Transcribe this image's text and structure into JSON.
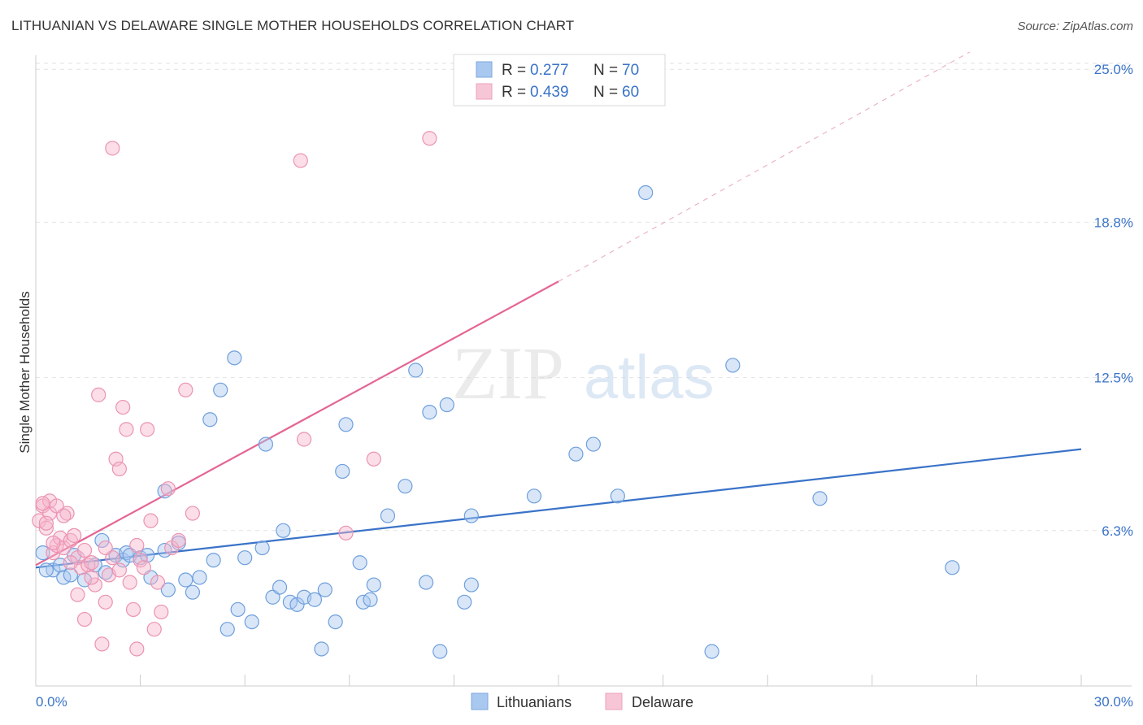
{
  "title": "LITHUANIAN VS DELAWARE SINGLE MOTHER HOUSEHOLDS CORRELATION CHART",
  "source": "Source: ZipAtlas.com",
  "watermark": {
    "zip": "ZIP",
    "atlas": "atlas"
  },
  "colors": {
    "blue": "#3a73c8",
    "blue_fill": "#a9c8f0",
    "pink": "#e46694",
    "pink_fill": "#f7b6cb"
  },
  "legend": {
    "rows": [
      {
        "r_label": "R = ",
        "r_value": "0.277",
        "n_label": "N = ",
        "n_value": "70"
      },
      {
        "r_label": "R = ",
        "r_value": "0.439",
        "n_label": "N = ",
        "n_value": "60"
      }
    ]
  },
  "chart_data": {
    "type": "scatter",
    "title": "LITHUANIAN VS DELAWARE SINGLE MOTHER HOUSEHOLDS CORRELATION CHART",
    "ylabel": "Single Mother Households",
    "xlabel": "",
    "xlim": [
      0,
      30
    ],
    "ylim": [
      0,
      25.7
    ],
    "x_tick_labels": [
      "0.0%",
      "30.0%"
    ],
    "y_ticks": [
      6.3,
      12.5,
      18.8,
      25.0
    ],
    "y_tick_labels": [
      "6.3%",
      "12.5%",
      "18.8%",
      "25.0%"
    ],
    "legend_placement": "bottom-center",
    "series": [
      {
        "name": "Lithuanians",
        "color": "#3a73c8",
        "trend": {
          "x0": 0,
          "y0": 4.8,
          "x1": 30,
          "y1": 9.6,
          "style": "solid"
        },
        "points": [
          [
            0.2,
            5.4
          ],
          [
            0.5,
            4.7
          ],
          [
            0.7,
            4.9
          ],
          [
            0.8,
            4.4
          ],
          [
            1.0,
            4.5
          ],
          [
            1.1,
            5.3
          ],
          [
            1.4,
            4.3
          ],
          [
            1.7,
            4.9
          ],
          [
            2.0,
            4.6
          ],
          [
            2.3,
            5.3
          ],
          [
            2.5,
            5.1
          ],
          [
            2.6,
            5.4
          ],
          [
            2.7,
            5.3
          ],
          [
            3.0,
            5.2
          ],
          [
            3.2,
            5.3
          ],
          [
            3.3,
            4.4
          ],
          [
            3.7,
            5.5
          ],
          [
            3.8,
            3.9
          ],
          [
            4.1,
            5.8
          ],
          [
            4.3,
            4.3
          ],
          [
            4.5,
            3.8
          ],
          [
            4.7,
            4.4
          ],
          [
            5.0,
            10.8
          ],
          [
            5.1,
            5.1
          ],
          [
            5.3,
            12.0
          ],
          [
            5.5,
            2.3
          ],
          [
            5.7,
            13.3
          ],
          [
            5.8,
            3.1
          ],
          [
            6.0,
            5.2
          ],
          [
            6.2,
            2.6
          ],
          [
            6.5,
            5.6
          ],
          [
            6.6,
            9.8
          ],
          [
            6.8,
            3.6
          ],
          [
            7.0,
            4.0
          ],
          [
            7.1,
            6.3
          ],
          [
            7.3,
            3.4
          ],
          [
            7.5,
            3.3
          ],
          [
            7.7,
            3.6
          ],
          [
            8.0,
            3.5
          ],
          [
            8.2,
            1.5
          ],
          [
            8.3,
            3.9
          ],
          [
            8.6,
            2.6
          ],
          [
            8.8,
            8.7
          ],
          [
            8.9,
            10.6
          ],
          [
            9.3,
            5.0
          ],
          [
            9.4,
            3.4
          ],
          [
            9.6,
            3.5
          ],
          [
            9.7,
            4.1
          ],
          [
            10.1,
            6.9
          ],
          [
            10.6,
            8.1
          ],
          [
            10.9,
            12.8
          ],
          [
            11.2,
            4.2
          ],
          [
            11.3,
            11.1
          ],
          [
            11.6,
            1.4
          ],
          [
            11.8,
            11.4
          ],
          [
            12.3,
            3.4
          ],
          [
            12.5,
            4.1
          ],
          [
            12.5,
            6.9
          ],
          [
            14.3,
            7.7
          ],
          [
            15.5,
            9.4
          ],
          [
            16.0,
            9.8
          ],
          [
            16.7,
            7.7
          ],
          [
            17.5,
            20.0
          ],
          [
            19.4,
            1.4
          ],
          [
            20.0,
            13.0
          ],
          [
            22.5,
            7.6
          ],
          [
            26.3,
            4.8
          ],
          [
            0.3,
            4.7
          ],
          [
            1.9,
            5.9
          ],
          [
            3.7,
            7.9
          ]
        ]
      },
      {
        "name": "Delaware",
        "color": "#e46694",
        "trend": {
          "x0": 0,
          "y0": 4.9,
          "x1": 15,
          "y1": 16.4,
          "dash_to_x": 26.8,
          "dash_to_y": 25.7,
          "style": "solid+dashed"
        },
        "points": [
          [
            0.1,
            6.7
          ],
          [
            0.2,
            7.3
          ],
          [
            0.3,
            6.4
          ],
          [
            0.4,
            7.0
          ],
          [
            0.5,
            5.4
          ],
          [
            0.6,
            5.7
          ],
          [
            0.7,
            6.0
          ],
          [
            0.8,
            5.6
          ],
          [
            0.9,
            7.0
          ],
          [
            1.0,
            5.9
          ],
          [
            1.1,
            6.1
          ],
          [
            1.2,
            5.2
          ],
          [
            1.3,
            4.8
          ],
          [
            1.4,
            5.5
          ],
          [
            1.5,
            4.9
          ],
          [
            1.6,
            5.0
          ],
          [
            1.7,
            4.1
          ],
          [
            1.8,
            11.8
          ],
          [
            1.9,
            1.7
          ],
          [
            2.0,
            3.4
          ],
          [
            2.1,
            4.5
          ],
          [
            2.2,
            5.2
          ],
          [
            2.3,
            9.2
          ],
          [
            2.4,
            4.7
          ],
          [
            2.5,
            11.3
          ],
          [
            2.6,
            10.4
          ],
          [
            2.7,
            4.2
          ],
          [
            2.8,
            3.1
          ],
          [
            2.9,
            1.5
          ],
          [
            3.0,
            5.1
          ],
          [
            3.1,
            4.8
          ],
          [
            3.2,
            10.4
          ],
          [
            3.3,
            6.7
          ],
          [
            3.4,
            2.3
          ],
          [
            3.5,
            4.2
          ],
          [
            3.6,
            3.0
          ],
          [
            3.8,
            8.0
          ],
          [
            3.9,
            5.6
          ],
          [
            4.1,
            5.9
          ],
          [
            4.3,
            12.0
          ],
          [
            4.5,
            7.0
          ],
          [
            2.2,
            21.8
          ],
          [
            7.6,
            21.3
          ],
          [
            7.7,
            10.0
          ],
          [
            8.9,
            6.2
          ],
          [
            9.7,
            9.2
          ],
          [
            11.3,
            22.2
          ],
          [
            0.3,
            6.6
          ],
          [
            0.4,
            7.5
          ],
          [
            0.6,
            7.3
          ],
          [
            0.8,
            6.9
          ],
          [
            1.0,
            5.0
          ],
          [
            1.2,
            3.7
          ],
          [
            1.4,
            2.7
          ],
          [
            1.6,
            4.4
          ],
          [
            2.0,
            5.6
          ],
          [
            2.4,
            8.8
          ],
          [
            2.9,
            5.7
          ],
          [
            0.2,
            7.4
          ],
          [
            0.5,
            5.8
          ]
        ]
      }
    ]
  }
}
